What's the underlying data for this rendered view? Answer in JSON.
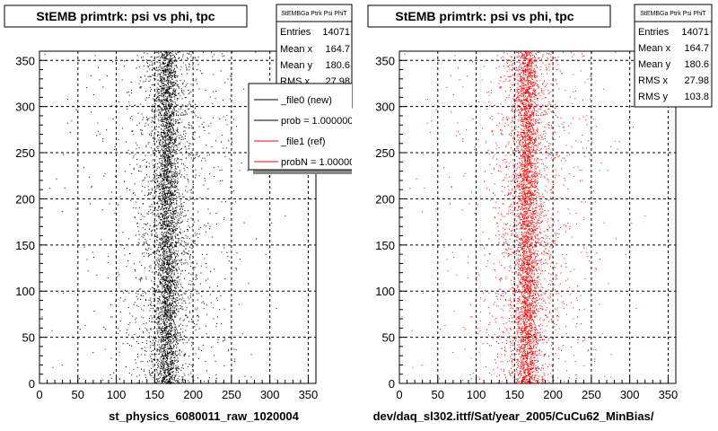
{
  "chart_data": [
    {
      "type": "scatter",
      "title": "StEMB primtrk: psi vs phi, tpc",
      "xlabel": "st_physics_6080011_raw_1020004",
      "ylabel": "",
      "xlim": [
        0,
        360
      ],
      "ylim": [
        0,
        360
      ],
      "x_ticks": [
        "0",
        "50",
        "100",
        "150",
        "200",
        "250",
        "300",
        "350"
      ],
      "y_ticks": [
        "0",
        "50",
        "100",
        "150",
        "200",
        "250",
        "300",
        "350"
      ],
      "grid": true,
      "marker_color": "#000000",
      "series": [
        {
          "points_description_x_center": 165,
          "points_description_x_rms": 28,
          "y_range": [
            0,
            360
          ]
        }
      ],
      "stats_box": {
        "name": "StEMBGa Ptrk Psi PhiT",
        "rows": [
          {
            "label": "Entries",
            "value": "14071"
          },
          {
            "label": "Mean x",
            "value": "164.7"
          },
          {
            "label": "Mean y",
            "value": "180.6"
          },
          {
            "label": "RMS x",
            "value": "27.98"
          }
        ]
      },
      "legend": {
        "placement": "top-right",
        "entries": [
          {
            "label": "_file0 (new)",
            "color": "#000000"
          },
          {
            "label": "prob = 1.000000",
            "color": "#000000"
          },
          {
            "label": "_file1 (ref)",
            "color": "#ff0000"
          },
          {
            "label": "probN = 1.000000",
            "color": "#ff0000"
          }
        ]
      }
    },
    {
      "type": "scatter",
      "title": "StEMB primtrk: psi vs phi, tpc",
      "xlabel": "dev/daq_sl302.ittf/Sat/year_2005/CuCu62_MinBias/",
      "ylabel": "",
      "xlim": [
        0,
        360
      ],
      "ylim": [
        0,
        360
      ],
      "x_ticks": [
        "0",
        "50",
        "100",
        "150",
        "200",
        "250",
        "300",
        "350"
      ],
      "y_ticks": [
        "0",
        "50",
        "100",
        "150",
        "200",
        "250",
        "300",
        "350"
      ],
      "grid": true,
      "marker_color": "#ff0000",
      "stats_box": {
        "name": "StEMBGa Ptrk Psi PhiT",
        "rows": [
          {
            "label": "Entries",
            "value": "14071"
          },
          {
            "label": "Mean x",
            "value": "164.7"
          },
          {
            "label": "Mean y",
            "value": "180.6"
          },
          {
            "label": "RMS x",
            "value": "27.98"
          },
          {
            "label": "RMS y",
            "value": "103.8"
          }
        ]
      }
    }
  ]
}
